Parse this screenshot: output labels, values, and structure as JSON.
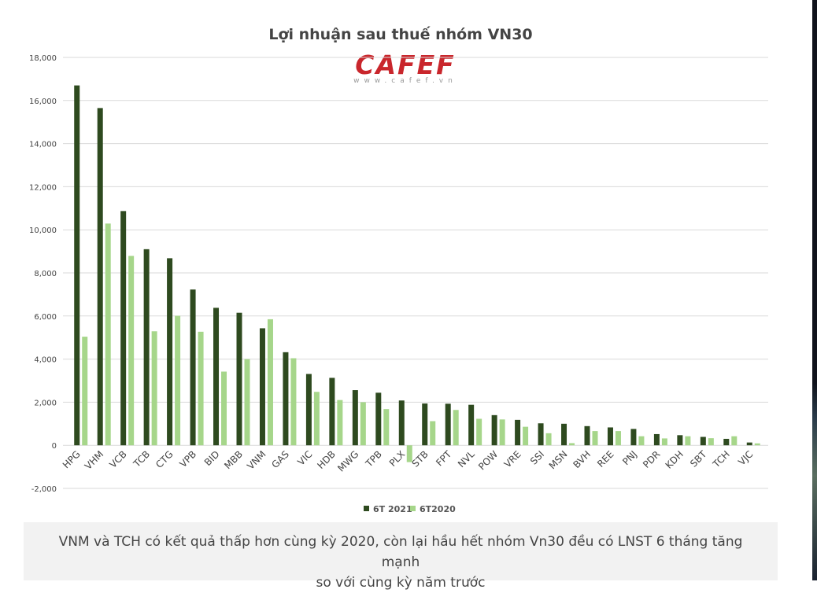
{
  "chart_data": {
    "type": "bar",
    "title": "Lợi nhuận sau thuế nhóm VN30",
    "categories": [
      "HPG",
      "VHM",
      "VCB",
      "TCB",
      "CTG",
      "VPB",
      "BID",
      "MBB",
      "VNM",
      "GAS",
      "VIC",
      "HDB",
      "MWG",
      "TPB",
      "PLX",
      "STB",
      "FPT",
      "NVL",
      "POW",
      "VRE",
      "SSI",
      "MSN",
      "BVH",
      "REE",
      "PNJ",
      "PDR",
      "KDH",
      "SBT",
      "TCH",
      "VJC"
    ],
    "series": [
      {
        "name": "6T 2021",
        "color": "#2e4a1f",
        "values": [
          16700,
          15650,
          10870,
          9100,
          8680,
          7230,
          6380,
          6150,
          5430,
          4320,
          3310,
          3130,
          2560,
          2440,
          2080,
          1940,
          1930,
          1880,
          1400,
          1180,
          1020,
          1000,
          890,
          830,
          760,
          520,
          470,
          390,
          300,
          130
        ]
      },
      {
        "name": "6T2020",
        "color": "#a6d68a",
        "values": [
          5040,
          10290,
          8790,
          5290,
          6010,
          5270,
          3420,
          4000,
          5850,
          4040,
          2480,
          2100,
          2000,
          1680,
          -780,
          1120,
          1640,
          1230,
          1200,
          860,
          560,
          100,
          660,
          660,
          420,
          320,
          420,
          330,
          420,
          90
        ]
      }
    ],
    "xlabel": "",
    "ylabel": "",
    "ylim": [
      -2000,
      18000
    ],
    "yticks": [
      -2000,
      0,
      2000,
      4000,
      6000,
      8000,
      10000,
      12000,
      14000,
      16000,
      18000
    ],
    "ytick_labels": [
      "-2,000",
      "0",
      "2,000",
      "4,000",
      "6,000",
      "8,000",
      "10,000",
      "12,000",
      "14,000",
      "16,000",
      "18,000"
    ],
    "grid": true,
    "legend": "bottom-center"
  },
  "logo": {
    "brand": "CAFEF",
    "url": "www.cafef.vn"
  },
  "caption": {
    "line1": "VNM và TCH có kết quả thấp hơn cùng kỳ 2020, còn lại hầu hết nhóm Vn30 đều có LNST 6 tháng tăng mạnh",
    "line2": "so với cùng kỳ năm trước"
  }
}
